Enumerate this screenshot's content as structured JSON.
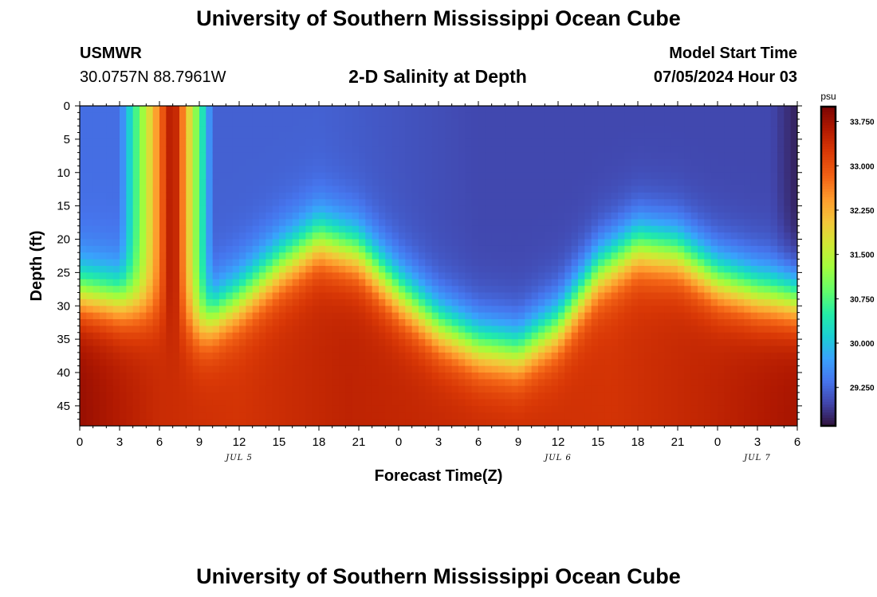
{
  "header": {
    "title": "University of Southern Mississippi Ocean Cube",
    "station": "USMWR",
    "coords": "30.0757N  88.7961W",
    "subtitle": "2-D Salinity at Depth",
    "start_label": "Model Start Time",
    "start_value": "07/05/2024 Hour 03"
  },
  "footer": {
    "title": "University of Southern Mississippi Ocean Cube"
  },
  "chart_data": {
    "type": "heatmap",
    "title": "2-D Salinity at Depth",
    "xlabel": "Forecast Time(Z)",
    "ylabel": "Depth (ft)",
    "x_range_hours": [
      0,
      54
    ],
    "y_range_ft": [
      0,
      48
    ],
    "x_ticks": [
      "0",
      "3",
      "6",
      "9",
      "12",
      "15",
      "18",
      "21",
      "0",
      "3",
      "6",
      "9",
      "12",
      "15",
      "18",
      "21",
      "0",
      "3",
      "6"
    ],
    "y_ticks": [
      "0",
      "5",
      "10",
      "15",
      "20",
      "25",
      "30",
      "35",
      "40",
      "45"
    ],
    "date_labels": [
      {
        "label": "JUL 5",
        "hour": 12
      },
      {
        "label": "JUL 6",
        "hour": 36
      },
      {
        "label": "JUL 7",
        "hour": 51
      }
    ],
    "colorbar": {
      "unit": "psu",
      "min": 28.6,
      "max": 34.0,
      "ticks": [
        "33.750",
        "33.000",
        "32.250",
        "31.500",
        "30.750",
        "30.000",
        "29.250"
      ],
      "tick_values": [
        33.75,
        33.0,
        32.25,
        31.5,
        30.75,
        30.0,
        29.25
      ]
    },
    "interface_depth_ft": [
      {
        "hour": 0,
        "depth": 28
      },
      {
        "hour": 3,
        "depth": 29
      },
      {
        "hour": 6,
        "depth": 31
      },
      {
        "hour": 9,
        "depth": 33
      },
      {
        "hour": 12,
        "depth": 29
      },
      {
        "hour": 15,
        "depth": 24
      },
      {
        "hour": 18,
        "depth": 20
      },
      {
        "hour": 21,
        "depth": 22
      },
      {
        "hour": 24,
        "depth": 28
      },
      {
        "hour": 27,
        "depth": 33
      },
      {
        "hour": 30,
        "depth": 36
      },
      {
        "hour": 33,
        "depth": 37
      },
      {
        "hour": 36,
        "depth": 33
      },
      {
        "hour": 39,
        "depth": 25
      },
      {
        "hour": 42,
        "depth": 21
      },
      {
        "hour": 45,
        "depth": 22
      },
      {
        "hour": 48,
        "depth": 26
      },
      {
        "hour": 51,
        "depth": 28
      },
      {
        "hour": 54,
        "depth": 29
      }
    ],
    "surface_salinity_psu": [
      {
        "hour": 0,
        "value": 29.3
      },
      {
        "hour": 3,
        "value": 29.3
      },
      {
        "hour": 7,
        "value": 33.8
      },
      {
        "hour": 10,
        "value": 29.2
      },
      {
        "hour": 18,
        "value": 29.2
      },
      {
        "hour": 30,
        "value": 29.0
      },
      {
        "hour": 45,
        "value": 29.0
      },
      {
        "hour": 52,
        "value": 29.0
      },
      {
        "hour": 54,
        "value": 28.7
      }
    ],
    "deep_salinity_psu": [
      {
        "hour": 0,
        "value": 33.8
      },
      {
        "hour": 6,
        "value": 33.4
      },
      {
        "hour": 12,
        "value": 33.3
      },
      {
        "hour": 20,
        "value": 33.5
      },
      {
        "hour": 30,
        "value": 33.4
      },
      {
        "hour": 40,
        "value": 33.3
      },
      {
        "hour": 48,
        "value": 33.5
      },
      {
        "hour": 54,
        "value": 33.7
      }
    ]
  }
}
